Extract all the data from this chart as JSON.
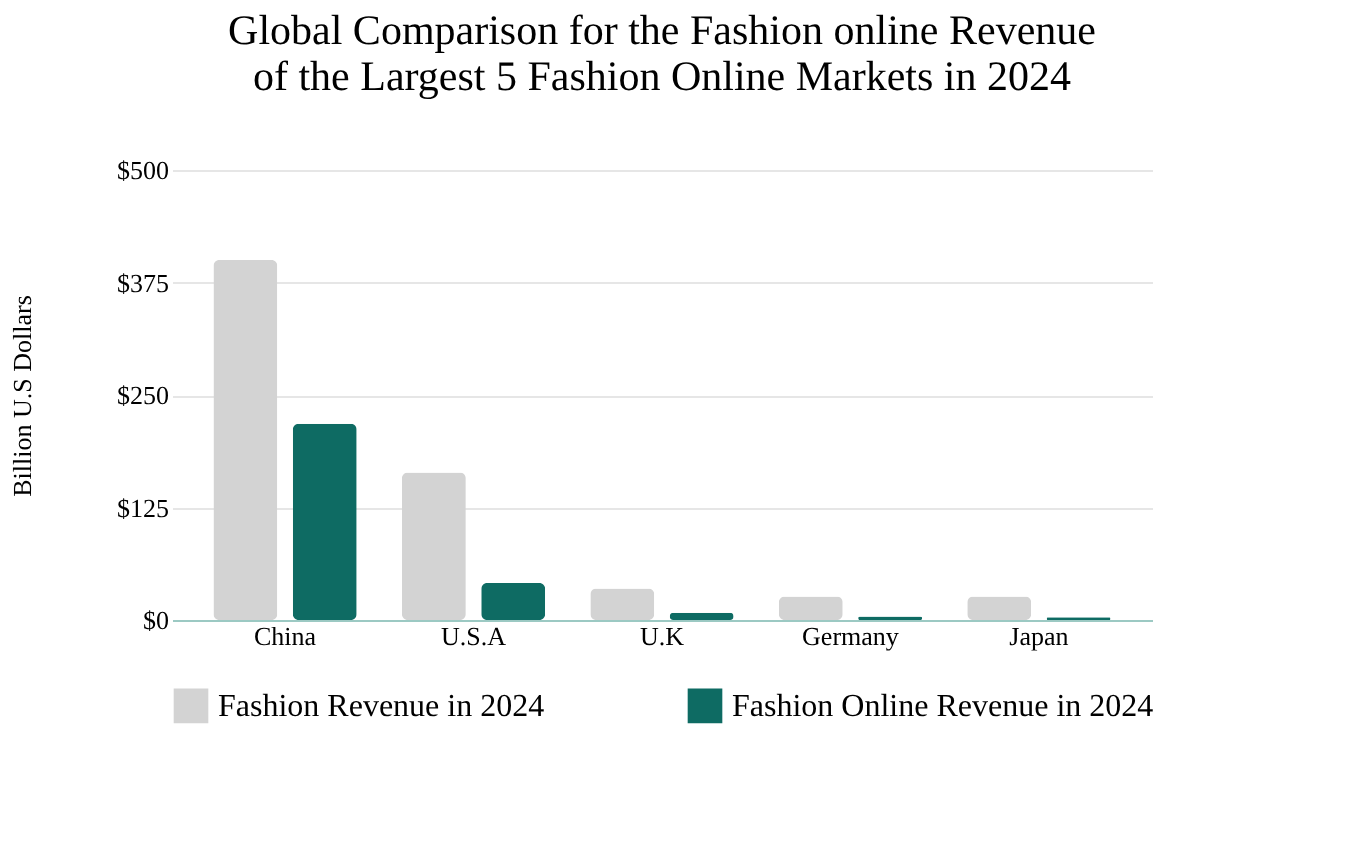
{
  "chart_data": {
    "type": "bar",
    "title": [
      "Global Comparison for the Fashion online Revenue",
      "of the Largest 5 Fashion Online Markets in 2024"
    ],
    "ylabel": "Billion U.S Dollars",
    "categories": [
      "China",
      "U.S.A",
      "U.K",
      "Germany",
      "Japan"
    ],
    "series": [
      {
        "name": "Fashion Revenue in 2024",
        "color": "#d3d3d3",
        "values": [
          400,
          164,
          35,
          26,
          26
        ]
      },
      {
        "name": "Fashion Online Revenue in 2024",
        "color": "#0e6b63",
        "values": [
          218,
          41,
          8,
          4,
          3
        ]
      }
    ],
    "ylim": [
      0,
      500
    ],
    "yticks": [
      {
        "value": 0,
        "label": "$0"
      },
      {
        "value": 125,
        "label": "$125"
      },
      {
        "value": 250,
        "label": "$250"
      },
      {
        "value": 375,
        "label": "$375"
      },
      {
        "value": 500,
        "label": "$500"
      }
    ],
    "grid": "y",
    "legend": "bottom"
  }
}
